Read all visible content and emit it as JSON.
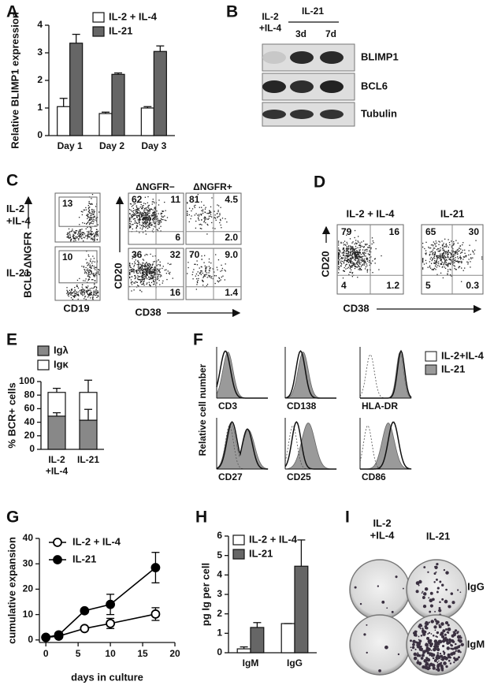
{
  "chart_data": [
    {
      "panel": "A",
      "type": "bar",
      "y_label": "Relative BLIMP1 expression",
      "categories": [
        "Day 1",
        "Day 2",
        "Day 3"
      ],
      "series": [
        {
          "name": "IL-2 + IL-4",
          "color": "#ffffff",
          "values": [
            1.05,
            0.8,
            1.0
          ],
          "errors": [
            0.3,
            0.05,
            0.05
          ]
        },
        {
          "name": "IL-21",
          "color": "#666666",
          "values": [
            3.35,
            2.22,
            3.05
          ],
          "errors": [
            0.32,
            0.05,
            0.2
          ]
        }
      ],
      "ylim": [
        0,
        4
      ],
      "yticks": [
        0,
        1,
        2,
        3,
        4
      ]
    },
    {
      "panel": "E",
      "type": "stacked_bar",
      "y_label": "% BCR+ cells",
      "categories": [
        "IL-2\n+IL-4",
        "IL-21"
      ],
      "series": [
        {
          "name": "Igλ",
          "color": "#888888",
          "values": [
            49,
            43
          ],
          "errors": [
            5,
            16
          ]
        },
        {
          "name": "Igκ",
          "color": "#ffffff",
          "values": [
            35,
            41
          ],
          "errors": [
            6,
            18
          ]
        }
      ],
      "ylim": [
        0,
        100
      ],
      "yticks": [
        0,
        20,
        40,
        60,
        80,
        100
      ]
    },
    {
      "panel": "G",
      "type": "line",
      "x_label": "days in culture",
      "y_label": "cumulative expansion",
      "x": [
        0,
        2,
        6,
        10,
        17
      ],
      "series": [
        {
          "name": "IL-2 + IL-4",
          "color": "#000000",
          "marker": "open",
          "values": [
            1,
            1.5,
            4.5,
            6.5,
            10.2
          ],
          "errors": [
            0,
            0,
            0.5,
            2,
            2.5
          ]
        },
        {
          "name": "IL-21",
          "color": "#000000",
          "marker": "filled",
          "values": [
            1,
            2,
            11.5,
            14,
            28.5
          ],
          "errors": [
            0,
            0,
            0,
            4,
            6
          ]
        }
      ],
      "xlim": [
        -1,
        20
      ],
      "xticks": [
        0,
        5,
        10,
        15,
        20
      ],
      "ylim": [
        -1,
        40
      ],
      "yticks": [
        0,
        10,
        20,
        30,
        40
      ]
    },
    {
      "panel": "H",
      "type": "bar",
      "y_label": "pg Ig per cell",
      "categories": [
        "IgM",
        "IgG"
      ],
      "series": [
        {
          "name": "IL-2 + IL-4",
          "color": "#ffffff",
          "values": [
            0.2,
            1.5
          ],
          "errors": [
            0.1,
            0
          ]
        },
        {
          "name": "IL-21",
          "color": "#666666",
          "values": [
            1.3,
            4.45
          ],
          "errors": [
            0.25,
            1.35
          ]
        }
      ],
      "ylim": [
        0,
        6
      ],
      "yticks": [
        0,
        1,
        2,
        3,
        4,
        5,
        6
      ]
    }
  ],
  "blot": {
    "panel": "B",
    "lanes": [
      "IL-2\n+IL-4",
      "IL-21"
    ],
    "timepoints": [
      "3d",
      "7d"
    ],
    "rows": [
      "BLIMP1",
      "BCL6",
      "Tubulin"
    ]
  },
  "flow_c": {
    "panel": "C",
    "conditions": [
      "IL-2\n+IL-4",
      "IL-21"
    ],
    "gate_y_label": "BCL6 ΔNGFR",
    "gate_x_label": "CD19",
    "gate_values": [
      "13",
      "10"
    ],
    "columns": [
      "ΔNGFR−",
      "ΔNGFR+"
    ],
    "y_label": "CD20",
    "x_label": "CD38",
    "quadrants": [
      [
        [
          "62",
          "11",
          "6"
        ],
        [
          "81",
          "4.5",
          "2.0"
        ]
      ],
      [
        [
          "36",
          "32",
          "16"
        ],
        [
          "70",
          "9.0",
          "1.4"
        ]
      ]
    ]
  },
  "flow_d": {
    "panel": "D",
    "conditions": [
      "IL-2 + IL-4",
      "IL-21"
    ],
    "y_label": "CD20",
    "x_label": "CD38",
    "quadrants": [
      [
        "79",
        "16",
        "4",
        "1.2"
      ],
      [
        "65",
        "30",
        "5",
        "0.3"
      ]
    ]
  },
  "histograms": {
    "panel": "F",
    "y_label": "Relative cell number",
    "markers": [
      "CD3",
      "CD138",
      "HLA-DR",
      "CD27",
      "CD25",
      "CD86"
    ],
    "legend": [
      {
        "name": "IL-2+IL-4",
        "color": "#ffffff"
      },
      {
        "name": "IL-21",
        "color": "#9a9a9a"
      }
    ]
  },
  "plates": {
    "panel": "I",
    "conditions": [
      "IL-2\n+IL-4",
      "IL-21"
    ],
    "isotypes": [
      "IgG",
      "IgM"
    ]
  }
}
